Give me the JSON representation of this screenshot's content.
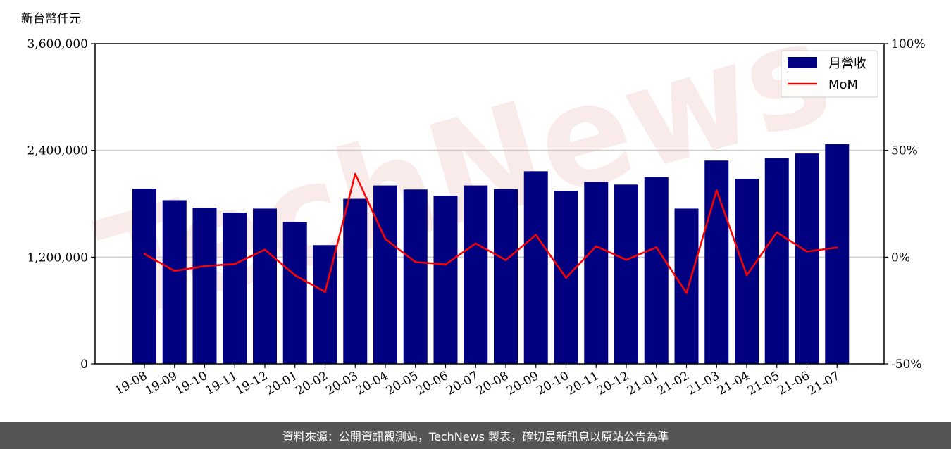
{
  "chart_data": {
    "type": "bar",
    "y_unit_label": "新台幣仟元",
    "categories": [
      "19-08",
      "19-09",
      "19-10",
      "19-11",
      "19-12",
      "20-01",
      "20-02",
      "20-03",
      "20-04",
      "20-05",
      "20-06",
      "20-07",
      "20-08",
      "20-09",
      "20-10",
      "20-11",
      "20-12",
      "21-01",
      "21-02",
      "21-03",
      "21-04",
      "21-05",
      "21-06",
      "21-07"
    ],
    "series": [
      {
        "name": "月營收",
        "axis": "left",
        "type": "bar",
        "color": "#000080",
        "values": [
          1970000,
          1840000,
          1755000,
          1700000,
          1745000,
          1595000,
          1335000,
          1855000,
          2005000,
          1960000,
          1890000,
          2005000,
          1965000,
          2165000,
          1945000,
          2045000,
          2015000,
          2100000,
          1745000,
          2285000,
          2080000,
          2315000,
          2365000,
          2470000
        ]
      },
      {
        "name": "MoM",
        "axis": "right",
        "type": "line",
        "color": "#ff0000",
        "values": [
          1.5,
          -6.5,
          -4.2,
          -3.2,
          3.5,
          -8.5,
          -16.3,
          39.0,
          8.5,
          -2.3,
          -3.4,
          6.4,
          -1.4,
          10.4,
          -9.7,
          5.1,
          -1.3,
          4.6,
          -16.8,
          31.3,
          -8.5,
          11.6,
          2.6,
          4.5
        ]
      }
    ],
    "y_left": {
      "min": 0,
      "max": 3600000,
      "ticks": [
        "0",
        "1,200,000",
        "2,400,000",
        "3,600,000"
      ]
    },
    "y_right": {
      "min": -50,
      "max": 100,
      "ticks": [
        "-50%",
        "0%",
        "50%",
        "100%"
      ]
    },
    "grid": "horizontal",
    "legend_position": "top-right"
  },
  "watermark_text": "TechNews",
  "footer": "資料來源：公開資訊觀測站，TechNews 製表，確切最新訊息以原站公告為準"
}
